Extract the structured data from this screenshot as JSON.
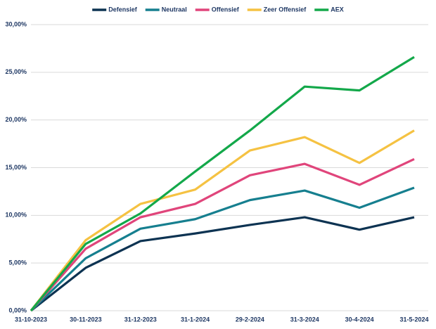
{
  "chart_data": {
    "type": "line",
    "categories": [
      "31-10-2023",
      "30-11-2023",
      "31-12-2023",
      "31-1-2024",
      "29-2-2024",
      "31-3-2024",
      "30-4-2024",
      "31-5-2024"
    ],
    "series": [
      {
        "name": "Defensief",
        "color": "#0d3352",
        "values": [
          0,
          4.5,
          7.3,
          8.1,
          9.0,
          9.8,
          8.5,
          9.8
        ]
      },
      {
        "name": "Neutraal",
        "color": "#167f8f",
        "values": [
          0,
          5.5,
          8.6,
          9.6,
          11.6,
          12.6,
          10.8,
          12.9
        ]
      },
      {
        "name": "Offensief",
        "color": "#e0457b",
        "values": [
          0,
          6.5,
          9.8,
          11.2,
          14.2,
          15.4,
          13.2,
          15.9
        ]
      },
      {
        "name": "Zeer Offensief",
        "color": "#f5c242",
        "values": [
          0,
          7.4,
          11.2,
          12.7,
          16.8,
          18.2,
          15.5,
          18.9
        ]
      },
      {
        "name": "AEX",
        "color": "#13a84a",
        "values": [
          0,
          7.0,
          10.2,
          14.6,
          18.9,
          23.5,
          23.1,
          26.6
        ]
      }
    ],
    "ylim": [
      0,
      30
    ],
    "yticks": [
      {
        "value": 0,
        "label": "0,00%"
      },
      {
        "value": 5,
        "label": "5,00%"
      },
      {
        "value": 10,
        "label": "10,00%"
      },
      {
        "value": 15,
        "label": "15,00%"
      },
      {
        "value": 20,
        "label": "20,00%"
      },
      {
        "value": 25,
        "label": "25,00%"
      },
      {
        "value": 30,
        "label": "30,00%"
      }
    ],
    "grid": true,
    "legend": "top"
  }
}
